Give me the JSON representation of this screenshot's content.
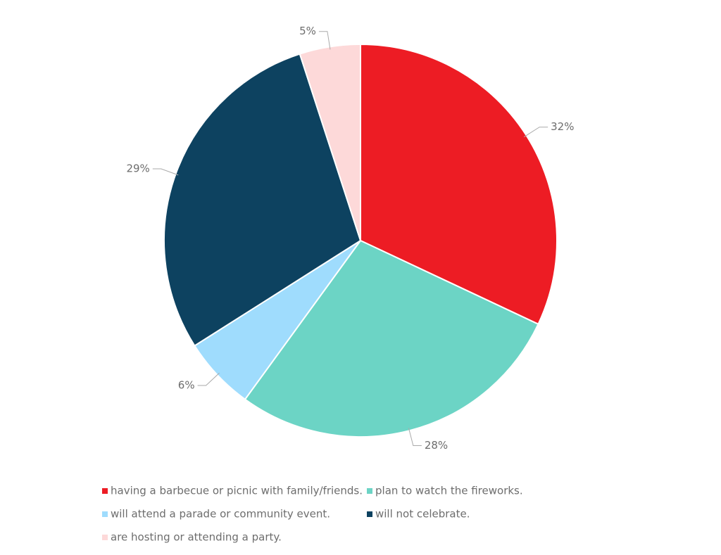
{
  "chart_data": {
    "type": "pie",
    "categories": [
      "having a barbecue or picnic with family/friends.",
      "plan to watch the fireworks.",
      "will attend a parade or community event.",
      "will not celebrate.",
      "are hosting or attending a party."
    ],
    "values": [
      32,
      28,
      6,
      29,
      5
    ],
    "value_labels": [
      "32%",
      "28%",
      "6%",
      "29%",
      "5%"
    ],
    "colors": [
      "#ed1c24",
      "#6cd4c5",
      "#9fdcfd",
      "#0d4260",
      "#fdd9d9"
    ]
  }
}
